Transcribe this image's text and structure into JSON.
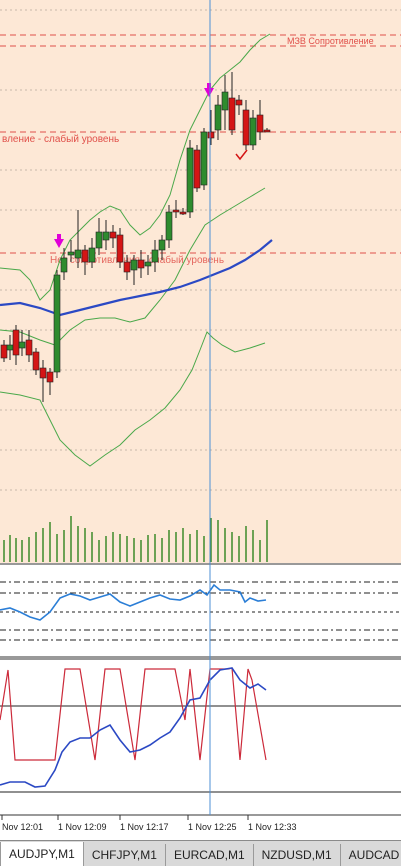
{
  "colors": {
    "background": "#fde8d6",
    "indicator_background": "#ffffff",
    "bull": "#2e8b2e",
    "bear": "#d41515",
    "ma": "#2b49c4",
    "bands": "#4aa84a",
    "level_line": "#e0504a",
    "signal_arrow": "#e000d8",
    "crosshair": "#4c8fd6",
    "stoch_line": "#cc2a3a",
    "stoch_signal": "#2b49c4"
  },
  "levels": {
    "resistance_label": "МЗВ Сопротивление",
    "weak_label_mid": "вление - слабый уровень",
    "weak_label_low": "Нет сопротивления - слабый уровень"
  },
  "time_axis": [
    "Nov 12:01",
    "1 Nov 12:09",
    "1 Nov 12:17",
    "1 Nov 12:25",
    "1 Nov 12:33"
  ],
  "tabs": [
    {
      "label": "AUDJPY,M1",
      "active": true
    },
    {
      "label": "CHFJPY,M1",
      "active": false
    },
    {
      "label": "EURCAD,M1",
      "active": false
    },
    {
      "label": "NZDUSD,M1",
      "active": false
    },
    {
      "label": "AUDCAD",
      "active": false
    }
  ]
}
